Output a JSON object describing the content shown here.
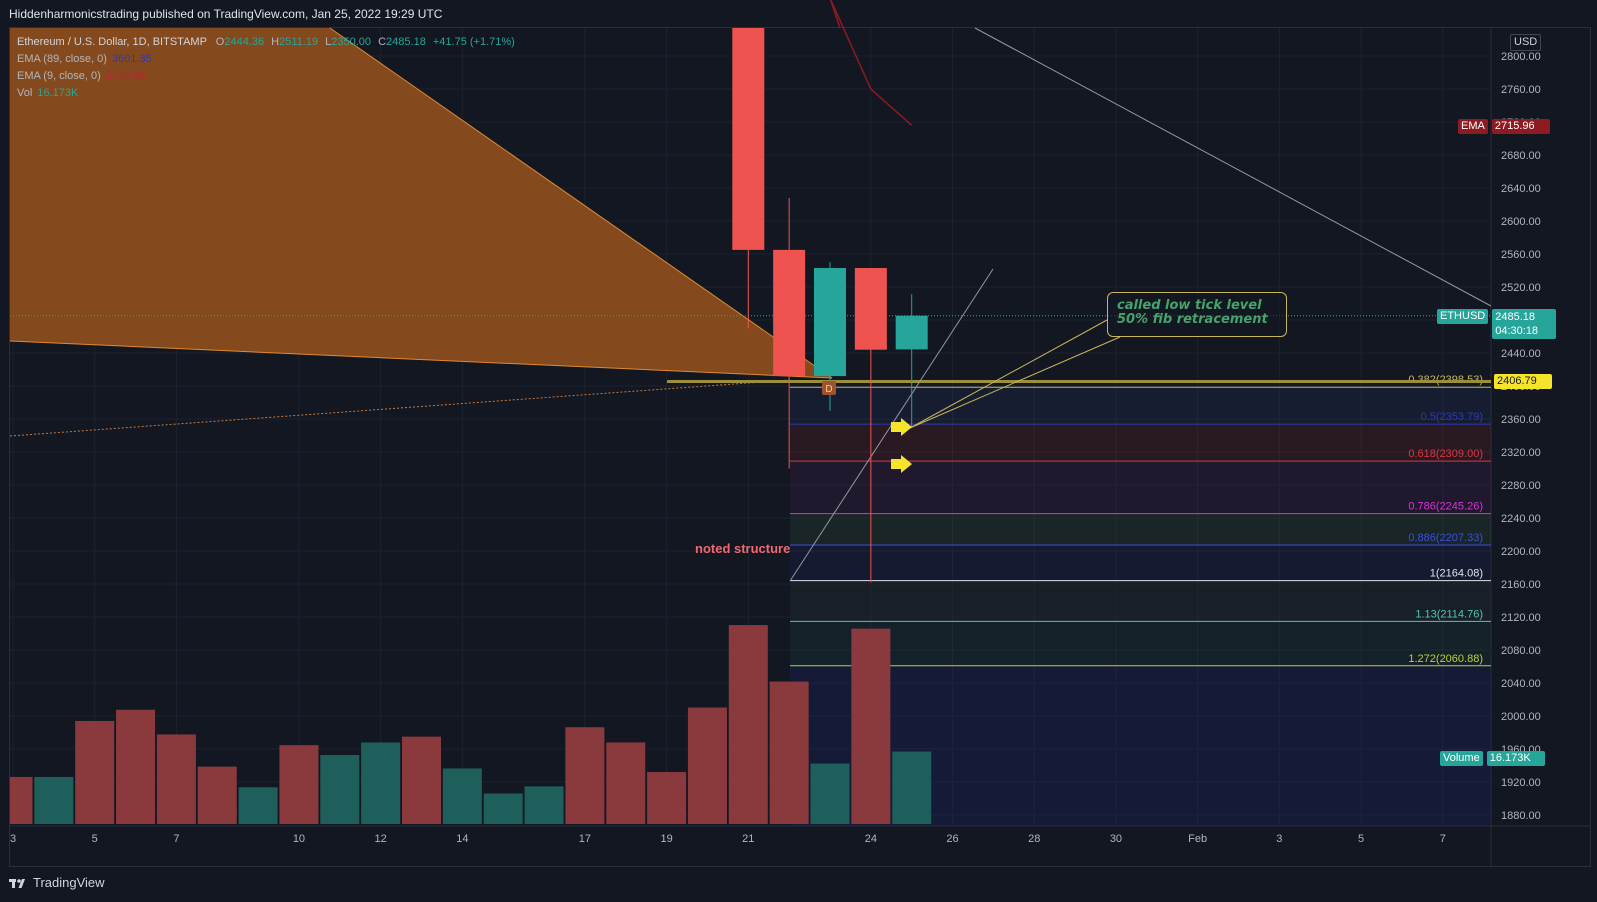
{
  "header": {
    "publish_line": "Hiddenharmonicstrading published on TradingView.com, Jan 25, 2022 19:29 UTC"
  },
  "legend": {
    "symbol": "Ethereum / U.S. Dollar, 1D, BITSTAMP",
    "o_label": "O",
    "o_value": "2444.36",
    "h_label": "H",
    "h_value": "2511.19",
    "l_label": "L",
    "l_value": "2350.00",
    "c_label": "C",
    "c_value": "2485.18",
    "change": "+41.75 (+1.71%)",
    "ema89_label": "EMA (89, close, 0)",
    "ema89_value": "3601.35",
    "ema9_label": "EMA (9, close, 0)",
    "ema9_value": "2715.96",
    "vol_label": "Vol",
    "vol_value": "16.173K"
  },
  "price_scale": {
    "currency": "USD",
    "ticks": [
      "2800.00",
      "2760.00",
      "2720.00",
      "2680.00",
      "2640.00",
      "2600.00",
      "2560.00",
      "2520.00",
      "2480.00",
      "2440.00",
      "2400.00",
      "2360.00",
      "2320.00",
      "2280.00",
      "2240.00",
      "2200.00",
      "2160.00",
      "2120.00",
      "2080.00",
      "2040.00",
      "2000.00",
      "1960.00",
      "1920.00",
      "1880.00"
    ]
  },
  "time_scale": {
    "ticks": [
      "3",
      "5",
      "7",
      "10",
      "12",
      "14",
      "17",
      "19",
      "21",
      "24",
      "26",
      "28",
      "30",
      "Feb",
      "3",
      "5",
      "7"
    ]
  },
  "tags": {
    "ema_label": "EMA",
    "ema_value": "2715.96",
    "ethusd_label": "ETHUSD",
    "ethusd_price": "2485.18",
    "ethusd_timer": "04:30:18",
    "level_value": "2406.79",
    "volume_label": "Volume",
    "volume_value": "16.173K"
  },
  "annotations": {
    "callout_line1": "called low tick level",
    "callout_line2": "50% fib retracement",
    "noted_structure": "noted structure",
    "dividend_marker": "D"
  },
  "fib_levels": [
    {
      "label": "0.382(2398.53)",
      "price": 2398.53,
      "color": "#c8b65a"
    },
    {
      "label": "0.5(2353.79)",
      "price": 2353.79,
      "color": "#2a3bb7"
    },
    {
      "label": "0.618(2309.00)",
      "price": 2309.0,
      "color": "#e0353f"
    },
    {
      "label": "0.786(2245.26)",
      "price": 2245.26,
      "color": "#d633d6"
    },
    {
      "label": "0.886(2207.33)",
      "price": 2207.33,
      "color": "#3b4fd6"
    },
    {
      "label": "1(2164.08)",
      "price": 2164.08,
      "color": "#e0e3eb"
    },
    {
      "label": "1.13(2114.76)",
      "price": 2114.76,
      "color": "#4fc8b0"
    },
    {
      "label": "1.272(2060.88)",
      "price": 2060.88,
      "color": "#b5d33a"
    }
  ],
  "colors": {
    "up": "#26a69a",
    "down": "#ef5350",
    "vol_up": "#1f5f5b",
    "vol_down": "#8a3a3c",
    "bg": "#131722",
    "grid": "#1e222d"
  },
  "chart_data": {
    "type": "candlestick",
    "title": "Ethereum / U.S. Dollar, 1D, BITSTAMP",
    "ylabel": "USD",
    "ylim": [
      1880,
      2800
    ],
    "candles": [
      {
        "date": "Jan 21",
        "open": 3000.0,
        "high": 3050.0,
        "low": 2470.0,
        "close": 2565.0
      },
      {
        "date": "Jan 22",
        "open": 2565.0,
        "high": 2628.0,
        "low": 2300.0,
        "close": 2412.0
      },
      {
        "date": "Jan 23",
        "open": 2412.0,
        "high": 2550.0,
        "low": 2370.0,
        "close": 2543.0
      },
      {
        "date": "Jan 24",
        "open": 2543.0,
        "high": 2543.0,
        "low": 2162.0,
        "close": 2444.0
      },
      {
        "date": "Jan 25",
        "open": 2444.36,
        "high": 2511.19,
        "low": 2350.0,
        "close": 2485.18
      }
    ],
    "volume": [
      {
        "date": "Jan 3",
        "value": 10.5,
        "dir": "down"
      },
      {
        "date": "Jan 4",
        "value": 10.5,
        "dir": "up"
      },
      {
        "date": "Jan 5",
        "value": 23.0,
        "dir": "down"
      },
      {
        "date": "Jan 6",
        "value": 25.5,
        "dir": "down"
      },
      {
        "date": "Jan 7",
        "value": 20.0,
        "dir": "down"
      },
      {
        "date": "Jan 8",
        "value": 12.8,
        "dir": "down"
      },
      {
        "date": "Jan 9",
        "value": 8.2,
        "dir": "up"
      },
      {
        "date": "Jan 10",
        "value": 17.6,
        "dir": "down"
      },
      {
        "date": "Jan 11",
        "value": 15.4,
        "dir": "up"
      },
      {
        "date": "Jan 12",
        "value": 18.2,
        "dir": "up"
      },
      {
        "date": "Jan 13",
        "value": 19.5,
        "dir": "down"
      },
      {
        "date": "Jan 14",
        "value": 12.4,
        "dir": "up"
      },
      {
        "date": "Jan 15",
        "value": 6.8,
        "dir": "up"
      },
      {
        "date": "Jan 16",
        "value": 8.4,
        "dir": "up"
      },
      {
        "date": "Jan 17",
        "value": 21.6,
        "dir": "down"
      },
      {
        "date": "Jan 18",
        "value": 18.2,
        "dir": "down"
      },
      {
        "date": "Jan 19",
        "value": 11.6,
        "dir": "down"
      },
      {
        "date": "Jan 20",
        "value": 26.0,
        "dir": "down"
      },
      {
        "date": "Jan 21",
        "value": 44.4,
        "dir": "down"
      },
      {
        "date": "Jan 22",
        "value": 31.8,
        "dir": "down"
      },
      {
        "date": "Jan 23",
        "value": 13.5,
        "dir": "up"
      },
      {
        "date": "Jan 24",
        "value": 43.6,
        "dir": "down"
      },
      {
        "date": "Jan 25",
        "value": 16.173,
        "dir": "up"
      }
    ],
    "ema9": [
      {
        "date": "Jan 23",
        "value": 2870
      },
      {
        "date": "Jan 24",
        "value": 2760
      },
      {
        "date": "Jan 25",
        "value": 2715.96
      }
    ],
    "ema89_value": 3601.35,
    "last_price": 2485.18
  }
}
